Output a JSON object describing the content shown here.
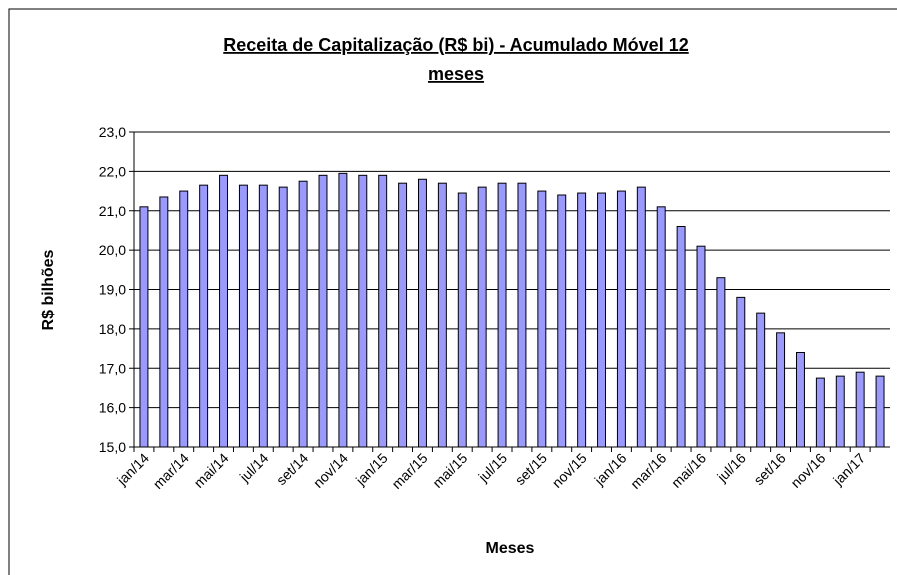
{
  "chart_data": {
    "type": "bar",
    "title": [
      "Receita de Capitalização (R$ bi) - Acumulado Móvel 12",
      "meses"
    ],
    "x_label": "Meses",
    "y_label": "R$ bilhões",
    "categories": [
      "jan/14",
      null,
      "mar/14",
      null,
      "mai/14",
      null,
      "jul/14",
      null,
      "set/14",
      null,
      "nov/14",
      null,
      "jan/15",
      null,
      "mar/15",
      null,
      "mai/15",
      null,
      "jul/15",
      null,
      "set/15",
      null,
      "nov/15",
      null,
      "jan/16",
      null,
      "mar/16",
      null,
      "mai/16",
      null,
      "jul/16",
      null,
      "set/16",
      null,
      "nov/16",
      null,
      "jan/17",
      null
    ],
    "values": [
      21.1,
      21.35,
      21.5,
      21.65,
      21.9,
      21.65,
      21.65,
      21.6,
      21.75,
      21.9,
      21.95,
      21.9,
      21.9,
      21.7,
      21.8,
      21.7,
      21.45,
      21.6,
      21.7,
      21.7,
      21.5,
      21.4,
      21.45,
      21.45,
      21.5,
      21.6,
      21.1,
      20.6,
      20.1,
      19.3,
      18.8,
      18.4,
      17.9,
      17.4,
      16.75,
      16.8,
      16.9,
      16.8
    ],
    "color": "#9999ff",
    "ylim": [
      15,
      23
    ],
    "yticks": [
      {
        "value": 15,
        "label": "15,0"
      },
      {
        "value": 16,
        "label": "16,0"
      },
      {
        "value": 17,
        "label": "17,0"
      },
      {
        "value": 18,
        "label": "18,0"
      },
      {
        "value": 19,
        "label": "19,0"
      },
      {
        "value": 20,
        "label": "20,0"
      },
      {
        "value": 21,
        "label": "21,0"
      },
      {
        "value": 22,
        "label": "22,0"
      },
      {
        "value": 23,
        "label": "23,0"
      }
    ],
    "grid": true
  }
}
